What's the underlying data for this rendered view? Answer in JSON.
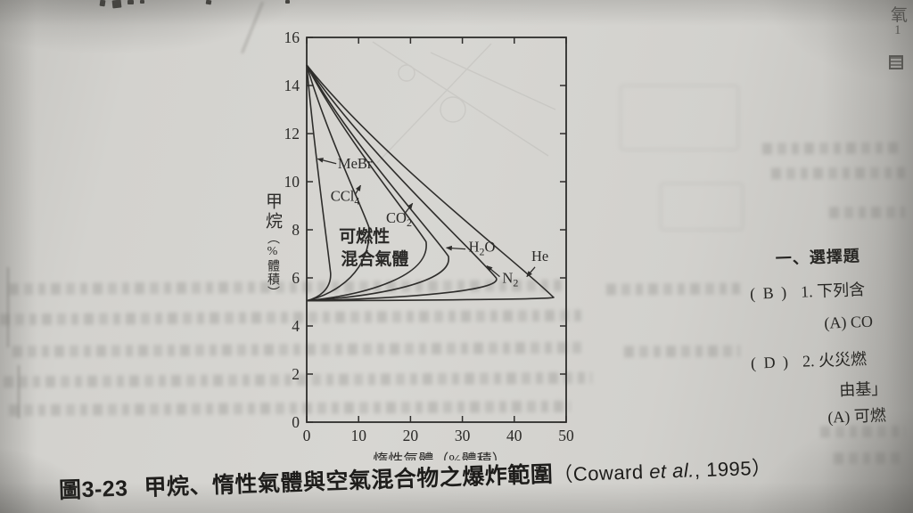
{
  "page": {
    "caption": {
      "figure_no": "圖3-23",
      "title": "甲烷、惰性氣體與空氣混合物之爆炸範圍",
      "source_open": "（Coward ",
      "source_etal": "et al.",
      "source_year": ", 1995）"
    },
    "top_right": {
      "char": "氧",
      "number": "1"
    },
    "right_column": {
      "heading": "一、選擇題",
      "items": [
        {
          "answer": "( B )",
          "text": "1. 下列含"
        },
        {
          "answer": "",
          "text": "(A) CO"
        },
        {
          "answer": "( D )",
          "text": "2. 火災燃"
        },
        {
          "answer": "",
          "text": "由基」"
        },
        {
          "answer": "",
          "text": "(A) 可燃"
        }
      ]
    }
  },
  "chart_data": {
    "type": "line",
    "title": "甲烷、惰性氣體與空氣混合物之爆炸範圍",
    "xlabel": "惰性氣體（%體積）",
    "ylabel": "甲烷（%體積）",
    "ylabel_main": "甲烷",
    "ylabel_sub": "（%體積）",
    "xlim": [
      0,
      50
    ],
    "ylim": [
      0,
      16
    ],
    "xticks": [
      0,
      10,
      20,
      30,
      40,
      50
    ],
    "yticks": [
      0,
      2,
      4,
      6,
      8,
      10,
      12,
      14,
      16
    ],
    "grid": false,
    "region_label": [
      "可燃性",
      "混合氣體"
    ],
    "upper_flammable_limit": 14.85,
    "lower_flammable_limit": 5.05,
    "series_note": "each envelope starts at (0,UFL), bulges to its nose point (max inert %), returns to (0,LFL)",
    "series": [
      {
        "name": "MeBr",
        "label_parts": [
          {
            "t": "MeBr"
          }
        ],
        "nose": {
          "x": 4.6,
          "y": 6.2
        },
        "label_at": {
          "x": 6.0,
          "y": 10.55
        },
        "arrow": {
          "from": {
            "x": 5.7,
            "y": 10.75
          },
          "to": {
            "x": 2.1,
            "y": 10.95
          }
        }
      },
      {
        "name": "CCl4",
        "label_parts": [
          {
            "t": "CCl"
          },
          {
            "t": "4",
            "sub": true
          }
        ],
        "nose": {
          "x": 12.0,
          "y": 8.1
        },
        "label_at": {
          "x": 4.6,
          "y": 9.2
        },
        "arrow": {
          "from": {
            "x": 9.3,
            "y": 9.45
          },
          "to": {
            "x": 10.4,
            "y": 9.85
          }
        }
      },
      {
        "name": "CO2",
        "label_parts": [
          {
            "t": "CO"
          },
          {
            "t": "2",
            "sub": true
          }
        ],
        "nose": {
          "x": 23.0,
          "y": 7.5
        },
        "label_at": {
          "x": 15.3,
          "y": 8.3
        },
        "arrow": {
          "from": {
            "x": 18.8,
            "y": 8.65
          },
          "to": {
            "x": 20.4,
            "y": 9.1
          }
        }
      },
      {
        "name": "H2O",
        "label_parts": [
          {
            "t": "H"
          },
          {
            "t": "2",
            "sub": true
          },
          {
            "t": "O"
          }
        ],
        "nose": {
          "x": 27.3,
          "y": 6.9
        },
        "label_at": {
          "x": 31.2,
          "y": 7.1
        },
        "arrow": {
          "from": {
            "x": 30.6,
            "y": 7.2
          },
          "to": {
            "x": 26.9,
            "y": 7.25
          }
        }
      },
      {
        "name": "N2",
        "label_parts": [
          {
            "t": "N"
          },
          {
            "t": "2",
            "sub": true
          }
        ],
        "nose": {
          "x": 36.5,
          "y": 6.0
        },
        "label_at": {
          "x": 37.7,
          "y": 5.8
        },
        "arrow": {
          "from": {
            "x": 37.2,
            "y": 6.05
          },
          "to": {
            "x": 34.7,
            "y": 6.5
          }
        }
      },
      {
        "name": "He",
        "label_parts": [
          {
            "t": "He"
          }
        ],
        "nose": {
          "x": 47.5,
          "y": 5.2
        },
        "label_at": {
          "x": 43.3,
          "y": 6.7
        },
        "arrow": {
          "from": {
            "x": 44.0,
            "y": 6.45
          },
          "to": {
            "x": 42.4,
            "y": 6.05
          }
        }
      }
    ]
  }
}
